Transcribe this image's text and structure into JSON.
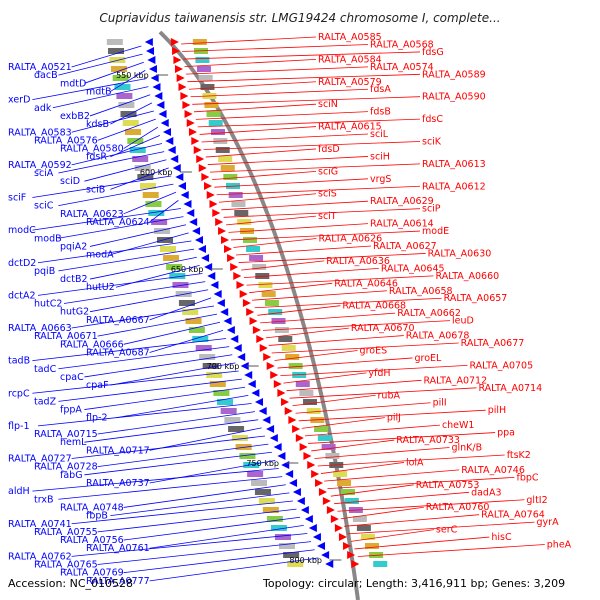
{
  "title": "Cupriavidus taiwanensis str. LMG19424 chromosome I, complete...",
  "footer": {
    "accession": "Accession: NC_010528",
    "summary": "Topology: circular; Length: 3,416,911 bp; Genes: 3,209"
  },
  "colors": {
    "minus_strand": "#0000ff",
    "plus_strand": "#ff0000",
    "backbone": "#888888",
    "tick": "#22aa22"
  },
  "scale_ticks": [
    "550 kbp",
    "600 kbp",
    "650 kbp",
    "700 kbp",
    "750 kbp",
    "800 kbp"
  ],
  "minus_labels": [
    "RALTA_A0521",
    "dacB",
    "mdtD",
    "mdtB",
    "xerD",
    "adk",
    "exbB2",
    "kdsB",
    "RALTA_A0583",
    "RALTA_A0576",
    "RALTA_A0580",
    "fdsR",
    "RALTA_A0592",
    "sciA",
    "sciD",
    "sciB",
    "sciF",
    "sciC",
    "RALTA_A0623",
    "RALTA_A0624",
    "modC",
    "modB",
    "pqiA2",
    "modA",
    "dctD2",
    "pqiB",
    "dctB2",
    "hutU2",
    "dctA2",
    "hutC2",
    "hutG2",
    "RALTA_A0667",
    "RALTA_A0663",
    "RALTA_A0671",
    "RALTA_A0666",
    "RALTA_A0687",
    "tadB",
    "tadC",
    "cpaC",
    "cpaF",
    "rcpC",
    "tadZ",
    "fppA",
    "flp-2",
    "flp-1",
    "RALTA_A0715",
    "hemL",
    "RALTA_A0717",
    "RALTA_A0727",
    "RALTA_A0728",
    "fabG",
    "RALTA_A0737",
    "aldH",
    "trxB",
    "RALTA_A0748",
    "fbpB",
    "RALTA_A0741",
    "RALTA_A0755",
    "RALTA_A0756",
    "RALTA_A0761",
    "RALTA_A0762",
    "RALTA_A0765",
    "RALTA_A0769",
    "RALTA_A0777"
  ],
  "plus_labels": [
    "RALTA_A0585",
    "RALTA_A0568",
    "fdsG",
    "RALTA_A0584",
    "RALTA_A0574",
    "RALTA_A0589",
    "RALTA_A0579",
    "fdsA",
    "RALTA_A0590",
    "sciN",
    "fdsB",
    "fdsC",
    "RALTA_A0615",
    "sciL",
    "sciK",
    "fdsD",
    "sciH",
    "RALTA_A0613",
    "sciG",
    "vrgS",
    "RALTA_A0612",
    "sciS",
    "RALTA_A0629",
    "sciP",
    "sciT",
    "RALTA_A0614",
    "modE",
    "RALTA_A0626",
    "RALTA_A0627",
    "RALTA_A0630",
    "RALTA_A0636",
    "RALTA_A0645",
    "RALTA_A0660",
    "RALTA_A0646",
    "RALTA_A0658",
    "RALTA_A0657",
    "RALTA_A0668",
    "RALTA_A0662",
    "leuD",
    "RALTA_A0670",
    "RALTA_A0678",
    "RALTA_A0677",
    "groES",
    "groEL",
    "RALTA_A0705",
    "yfdH",
    "RALTA_A0712",
    "RALTA_A0714",
    "rubA",
    "pilI",
    "pilH",
    "pilJ",
    "cheW1",
    "ppa",
    "RALTA_A0733",
    "glnK/B",
    "ftsK2",
    "lolA",
    "RALTA_A0746",
    "fbpC",
    "RALTA_A0753",
    "dadA3",
    "gltI2",
    "RALTA_A0760",
    "RALTA_A0764",
    "gyrA",
    "serC",
    "hisC",
    "pheA"
  ]
}
